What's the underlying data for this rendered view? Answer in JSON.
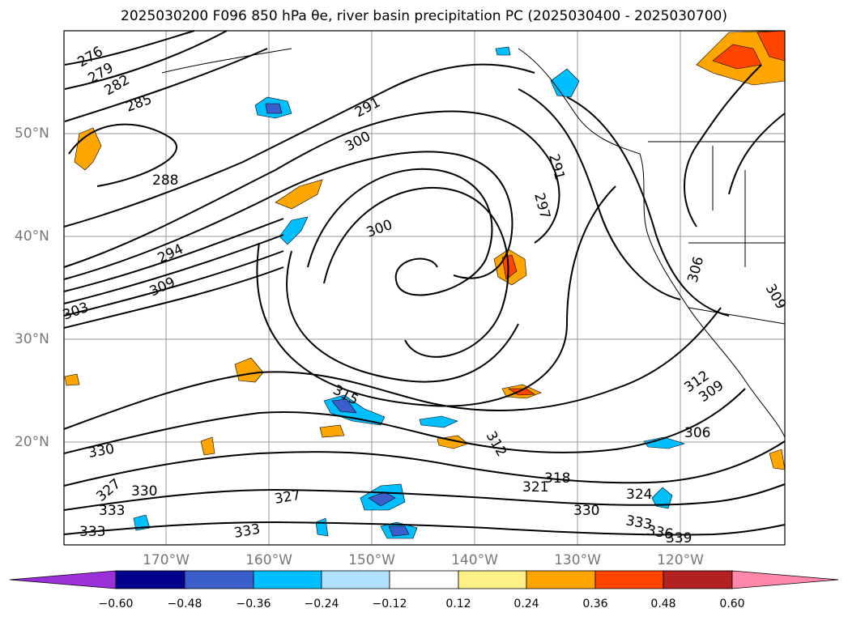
{
  "title": "2025030200 F096 850 hPa θe, river basin precipitation PC (2025030400 - 2025030700)",
  "longitude_labels": [
    "170°W",
    "160°W",
    "150°W",
    "140°W",
    "130°W",
    "120°W"
  ],
  "latitude_labels": [
    "50°N",
    "40°N",
    "30°N",
    "20°N"
  ],
  "contour_labels": [
    "276",
    "279",
    "282",
    "285",
    "288",
    "291",
    "300",
    "294",
    "309",
    "303",
    "291",
    "297",
    "300",
    "306",
    "309",
    "312",
    "309",
    "306",
    "315",
    "312",
    "318",
    "321",
    "324",
    "330",
    "333",
    "336",
    "339",
    "327",
    "330",
    "327",
    "330",
    "333",
    "333",
    "333"
  ],
  "colorbar": {
    "ticks": [
      "−0.60",
      "−0.48",
      "−0.36",
      "−0.24",
      "−0.12",
      "0.12",
      "0.24",
      "0.36",
      "0.48",
      "0.60"
    ],
    "colors": [
      "#9b30d9",
      "#00008b",
      "#3a5fcd",
      "#00bfff",
      "#b0e2ff",
      "#ffffff",
      "#fff08a",
      "#ffa500",
      "#ff4500",
      "#b22222",
      "#ff88aa"
    ]
  }
}
